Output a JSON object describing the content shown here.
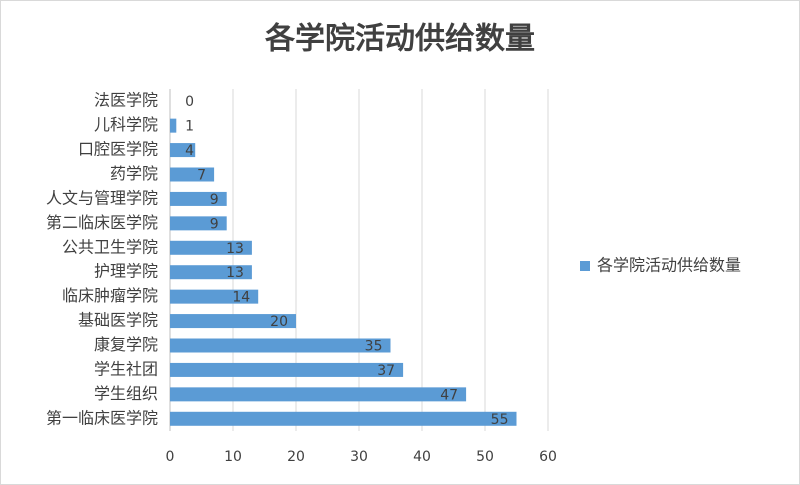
{
  "chart_data": {
    "type": "hbar",
    "title": "各学院活动供给数量",
    "categories": [
      "法医学院",
      "儿科学院",
      "口腔医学院",
      "药学院",
      "人文与管理学院",
      "第二临床医学院",
      "公共卫生学院",
      "护理学院",
      "临床肿瘤学院",
      "基础医学院",
      "康复学院",
      "学生社团",
      "学生组织",
      "第一临床医学院"
    ],
    "series": [
      {
        "name": "各学院活动供给数量",
        "color": "#5b9bd5",
        "values": [
          0,
          1,
          4,
          7,
          9,
          9,
          13,
          13,
          14,
          20,
          35,
          37,
          47,
          55
        ]
      }
    ],
    "xlim": [
      0,
      60
    ],
    "xticks": [
      0,
      10,
      20,
      30,
      40,
      50,
      60
    ],
    "grid": true,
    "legend": "right"
  }
}
